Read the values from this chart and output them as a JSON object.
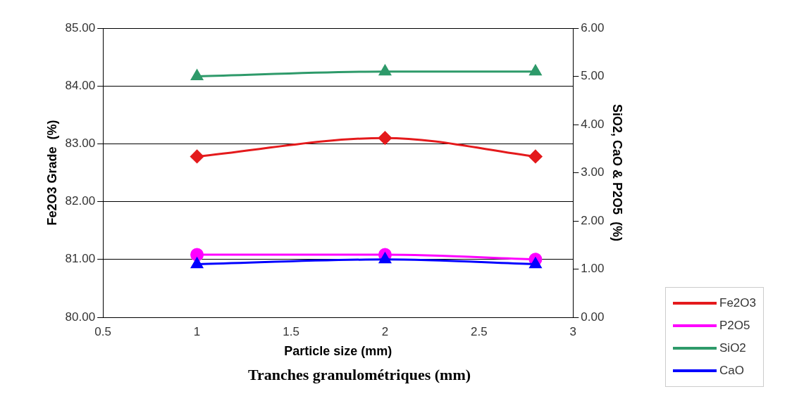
{
  "chart_data": {
    "type": "line",
    "xlabel": "Particle size (mm)",
    "ylabel": "Fe2O3 Grade  (%)",
    "y2label": "SiO2, CaO & P2O5  (%)",
    "xlim": [
      0.5,
      3
    ],
    "xticks": [
      {
        "value": 0.5,
        "label": "0.5"
      },
      1,
      1.5,
      2,
      2.5,
      3
    ],
    "ylim": [
      80,
      85
    ],
    "yticks": [
      {
        "value": 80,
        "label": "80.00"
      },
      {
        "value": 81,
        "label": "81.00"
      },
      {
        "value": 82,
        "label": "82.00"
      },
      {
        "value": 83,
        "label": "83.00"
      },
      {
        "value": 84,
        "label": "84.00"
      },
      {
        "value": 85,
        "label": "85.00"
      }
    ],
    "y2lim": [
      0,
      6
    ],
    "y2ticks": [
      {
        "value": 0,
        "label": "0.00"
      },
      {
        "value": 1,
        "label": "1.00"
      },
      {
        "value": 2,
        "label": "2.00"
      },
      {
        "value": 3,
        "label": "3.00"
      },
      {
        "value": 4,
        "label": "4.00"
      },
      {
        "value": 5,
        "label": "5.00"
      },
      {
        "value": 6,
        "label": "6.00"
      }
    ],
    "grid": "y",
    "legend": "bottom right",
    "annotations": [
      "Tranches granulométriques (mm)"
    ],
    "x": [
      1,
      2,
      2.8
    ],
    "series": [
      {
        "name": "Fe2O3",
        "color": "#e41a1c",
        "values": [
          82.78,
          83.1,
          82.78
        ],
        "marker": "diamond"
      },
      {
        "name": "P2O5",
        "color": "#ff00ff",
        "values": [
          1.3,
          1.3,
          1.2
        ],
        "axis": "y2",
        "marker": "circle"
      },
      {
        "name": "SiO2",
        "color": "#2e9a6a",
        "values": [
          5.0,
          5.1,
          5.1
        ],
        "axis": "y2",
        "marker": "triangle"
      },
      {
        "name": "CaO",
        "color": "#0000ff",
        "values": [
          1.1,
          1.2,
          1.1
        ],
        "axis": "y2",
        "marker": "triangle"
      }
    ]
  }
}
